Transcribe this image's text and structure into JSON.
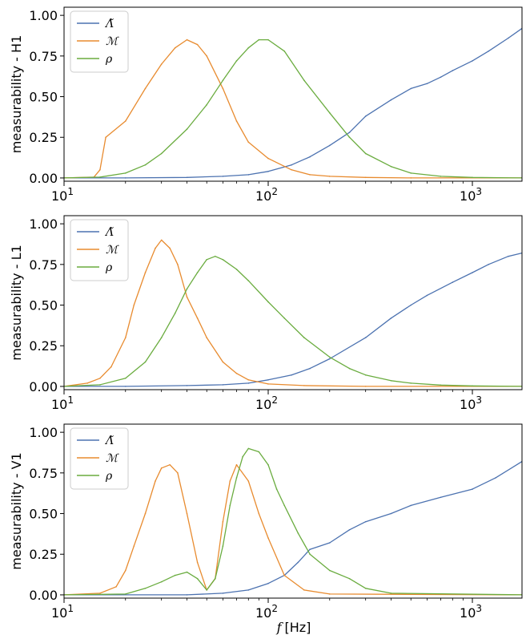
{
  "figure": {
    "xlabel": "f [Hz]",
    "xscale": "log"
  },
  "chart_data": [
    {
      "type": "line",
      "ylabel": "measurability - H1",
      "xlim": [
        10,
        1750
      ],
      "ylim": [
        -0.02,
        1.05
      ],
      "x_ticks": [
        {
          "value": 10,
          "base": "10",
          "exp": "1"
        },
        {
          "value": 100,
          "base": "10",
          "exp": "2"
        },
        {
          "value": 1000,
          "base": "10",
          "exp": "3"
        }
      ],
      "y_ticks": [
        "0.00",
        "0.25",
        "0.50",
        "0.75",
        "1.00"
      ],
      "legend": {
        "location": "top-left",
        "entries": [
          "Λ̃",
          "ℳ",
          "ρ"
        ]
      },
      "series": [
        {
          "name": "Λ̃",
          "color": "#4c72b0",
          "x": [
            10,
            20,
            40,
            60,
            80,
            100,
            130,
            160,
            200,
            250,
            300,
            400,
            500,
            600,
            700,
            800,
            1000,
            1200,
            1500,
            1750
          ],
          "y": [
            0,
            0,
            0.003,
            0.01,
            0.02,
            0.04,
            0.08,
            0.13,
            0.2,
            0.28,
            0.38,
            0.48,
            0.55,
            0.58,
            0.62,
            0.66,
            0.72,
            0.78,
            0.86,
            0.92
          ]
        },
        {
          "name": "ℳ",
          "color": "#e88b2f",
          "x": [
            10,
            14,
            15,
            16,
            20,
            25,
            30,
            35,
            40,
            45,
            50,
            60,
            70,
            80,
            100,
            130,
            160,
            200,
            300,
            500,
            1750
          ],
          "y": [
            0,
            0.005,
            0.05,
            0.25,
            0.35,
            0.55,
            0.7,
            0.8,
            0.85,
            0.82,
            0.75,
            0.55,
            0.35,
            0.22,
            0.12,
            0.05,
            0.02,
            0.01,
            0.003,
            0,
            0
          ]
        },
        {
          "name": "ρ",
          "color": "#6aac3f",
          "x": [
            10,
            15,
            20,
            25,
            30,
            40,
            50,
            60,
            70,
            80,
            90,
            100,
            120,
            150,
            200,
            250,
            300,
            400,
            500,
            700,
            1000,
            1750
          ],
          "y": [
            0,
            0.005,
            0.03,
            0.08,
            0.15,
            0.3,
            0.45,
            0.6,
            0.72,
            0.8,
            0.85,
            0.85,
            0.78,
            0.6,
            0.4,
            0.25,
            0.15,
            0.07,
            0.03,
            0.01,
            0.003,
            0
          ]
        }
      ]
    },
    {
      "type": "line",
      "ylabel": "measurability - L1",
      "xlim": [
        10,
        1750
      ],
      "ylim": [
        -0.02,
        1.05
      ],
      "x_ticks": [
        {
          "value": 10,
          "base": "10",
          "exp": "1"
        },
        {
          "value": 100,
          "base": "10",
          "exp": "2"
        },
        {
          "value": 1000,
          "base": "10",
          "exp": "3"
        }
      ],
      "y_ticks": [
        "0.00",
        "0.25",
        "0.50",
        "0.75",
        "1.00"
      ],
      "legend": {
        "location": "top-left",
        "entries": [
          "Λ̃",
          "ℳ",
          "ρ"
        ]
      },
      "series": [
        {
          "name": "Λ̃",
          "color": "#4c72b0",
          "x": [
            10,
            20,
            40,
            60,
            80,
            100,
            130,
            160,
            200,
            300,
            400,
            500,
            600,
            800,
            1000,
            1200,
            1500,
            1750
          ],
          "y": [
            0,
            0,
            0.005,
            0.01,
            0.02,
            0.04,
            0.07,
            0.11,
            0.17,
            0.3,
            0.42,
            0.5,
            0.56,
            0.64,
            0.7,
            0.75,
            0.8,
            0.82
          ]
        },
        {
          "name": "ℳ",
          "color": "#e88b2f",
          "x": [
            10,
            13,
            15,
            17,
            20,
            22,
            25,
            28,
            30,
            33,
            36,
            40,
            45,
            50,
            60,
            70,
            80,
            100,
            150,
            300,
            1750
          ],
          "y": [
            0,
            0.02,
            0.05,
            0.12,
            0.3,
            0.5,
            0.7,
            0.85,
            0.9,
            0.85,
            0.75,
            0.55,
            0.42,
            0.3,
            0.15,
            0.08,
            0.04,
            0.015,
            0.005,
            0,
            0
          ]
        },
        {
          "name": "ρ",
          "color": "#6aac3f",
          "x": [
            10,
            15,
            20,
            25,
            30,
            35,
            40,
            45,
            50,
            55,
            60,
            70,
            80,
            100,
            120,
            150,
            200,
            250,
            300,
            400,
            500,
            700,
            1000,
            1750
          ],
          "y": [
            0,
            0.01,
            0.05,
            0.15,
            0.3,
            0.45,
            0.6,
            0.7,
            0.78,
            0.8,
            0.78,
            0.72,
            0.65,
            0.52,
            0.42,
            0.3,
            0.18,
            0.11,
            0.07,
            0.035,
            0.02,
            0.008,
            0.003,
            0
          ]
        }
      ]
    },
    {
      "type": "line",
      "ylabel": "measurability - V1",
      "xlim": [
        10,
        1750
      ],
      "ylim": [
        -0.02,
        1.05
      ],
      "x_ticks": [
        {
          "value": 10,
          "base": "10",
          "exp": "1"
        },
        {
          "value": 100,
          "base": "10",
          "exp": "2"
        },
        {
          "value": 1000,
          "base": "10",
          "exp": "3"
        }
      ],
      "y_ticks": [
        "0.00",
        "0.25",
        "0.50",
        "0.75",
        "1.00"
      ],
      "legend": {
        "location": "top-left",
        "entries": [
          "Λ̃",
          "ℳ",
          "ρ"
        ]
      },
      "series": [
        {
          "name": "Λ̃",
          "color": "#4c72b0",
          "x": [
            10,
            40,
            60,
            80,
            100,
            120,
            140,
            160,
            200,
            250,
            300,
            400,
            500,
            700,
            1000,
            1300,
            1750
          ],
          "y": [
            0,
            0,
            0.01,
            0.03,
            0.07,
            0.12,
            0.2,
            0.28,
            0.32,
            0.4,
            0.45,
            0.5,
            0.55,
            0.6,
            0.65,
            0.72,
            0.82
          ]
        },
        {
          "name": "ℳ",
          "color": "#e88b2f",
          "x": [
            10,
            15,
            18,
            20,
            22,
            25,
            28,
            30,
            33,
            36,
            40,
            45,
            50,
            55,
            60,
            65,
            70,
            80,
            90,
            100,
            120,
            150,
            200,
            1750
          ],
          "y": [
            0,
            0.01,
            0.05,
            0.15,
            0.3,
            0.5,
            0.7,
            0.78,
            0.8,
            0.75,
            0.5,
            0.2,
            0.03,
            0.1,
            0.45,
            0.7,
            0.8,
            0.7,
            0.5,
            0.35,
            0.12,
            0.03,
            0.005,
            0
          ]
        },
        {
          "name": "ρ",
          "color": "#6aac3f",
          "x": [
            10,
            20,
            25,
            30,
            35,
            40,
            45,
            50,
            55,
            60,
            65,
            70,
            75,
            80,
            90,
            100,
            110,
            120,
            140,
            160,
            200,
            250,
            300,
            400,
            1750
          ],
          "y": [
            0,
            0.005,
            0.04,
            0.08,
            0.12,
            0.14,
            0.1,
            0.03,
            0.1,
            0.3,
            0.55,
            0.72,
            0.85,
            0.9,
            0.88,
            0.8,
            0.65,
            0.55,
            0.38,
            0.25,
            0.15,
            0.1,
            0.04,
            0.01,
            0
          ]
        }
      ]
    }
  ]
}
